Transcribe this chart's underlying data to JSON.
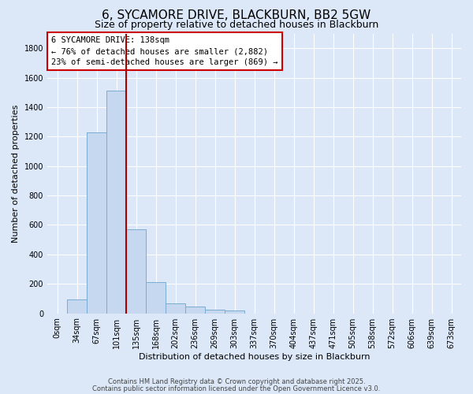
{
  "title": "6, SYCAMORE DRIVE, BLACKBURN, BB2 5GW",
  "subtitle": "Size of property relative to detached houses in Blackburn",
  "bar_labels": [
    "0sqm",
    "34sqm",
    "67sqm",
    "101sqm",
    "135sqm",
    "168sqm",
    "202sqm",
    "236sqm",
    "269sqm",
    "303sqm",
    "337sqm",
    "370sqm",
    "404sqm",
    "437sqm",
    "471sqm",
    "505sqm",
    "538sqm",
    "572sqm",
    "606sqm",
    "639sqm",
    "673sqm"
  ],
  "bar_values": [
    0,
    93,
    1230,
    1510,
    570,
    210,
    65,
    45,
    25,
    20,
    0,
    0,
    0,
    0,
    0,
    0,
    0,
    0,
    0,
    0,
    0
  ],
  "bar_color": "#c5d8f0",
  "bar_edge_color": "#7aadd4",
  "vline_color": "#aa0000",
  "ylabel": "Number of detached properties",
  "xlabel": "Distribution of detached houses by size in Blackburn",
  "ylim": [
    0,
    1900
  ],
  "yticks": [
    0,
    200,
    400,
    600,
    800,
    1000,
    1200,
    1400,
    1600,
    1800
  ],
  "annotation_title": "6 SYCAMORE DRIVE: 138sqm",
  "annotation_line1": "← 76% of detached houses are smaller (2,882)",
  "annotation_line2": "23% of semi-detached houses are larger (869) →",
  "footer1": "Contains HM Land Registry data © Crown copyright and database right 2025.",
  "footer2": "Contains public sector information licensed under the Open Government Licence v3.0.",
  "bg_color": "#dce8f8",
  "plot_bg_color": "#dce8f8",
  "grid_color": "#ffffff",
  "title_fontsize": 11,
  "subtitle_fontsize": 9,
  "axis_label_fontsize": 8,
  "tick_fontsize": 7,
  "footer_fontsize": 6
}
